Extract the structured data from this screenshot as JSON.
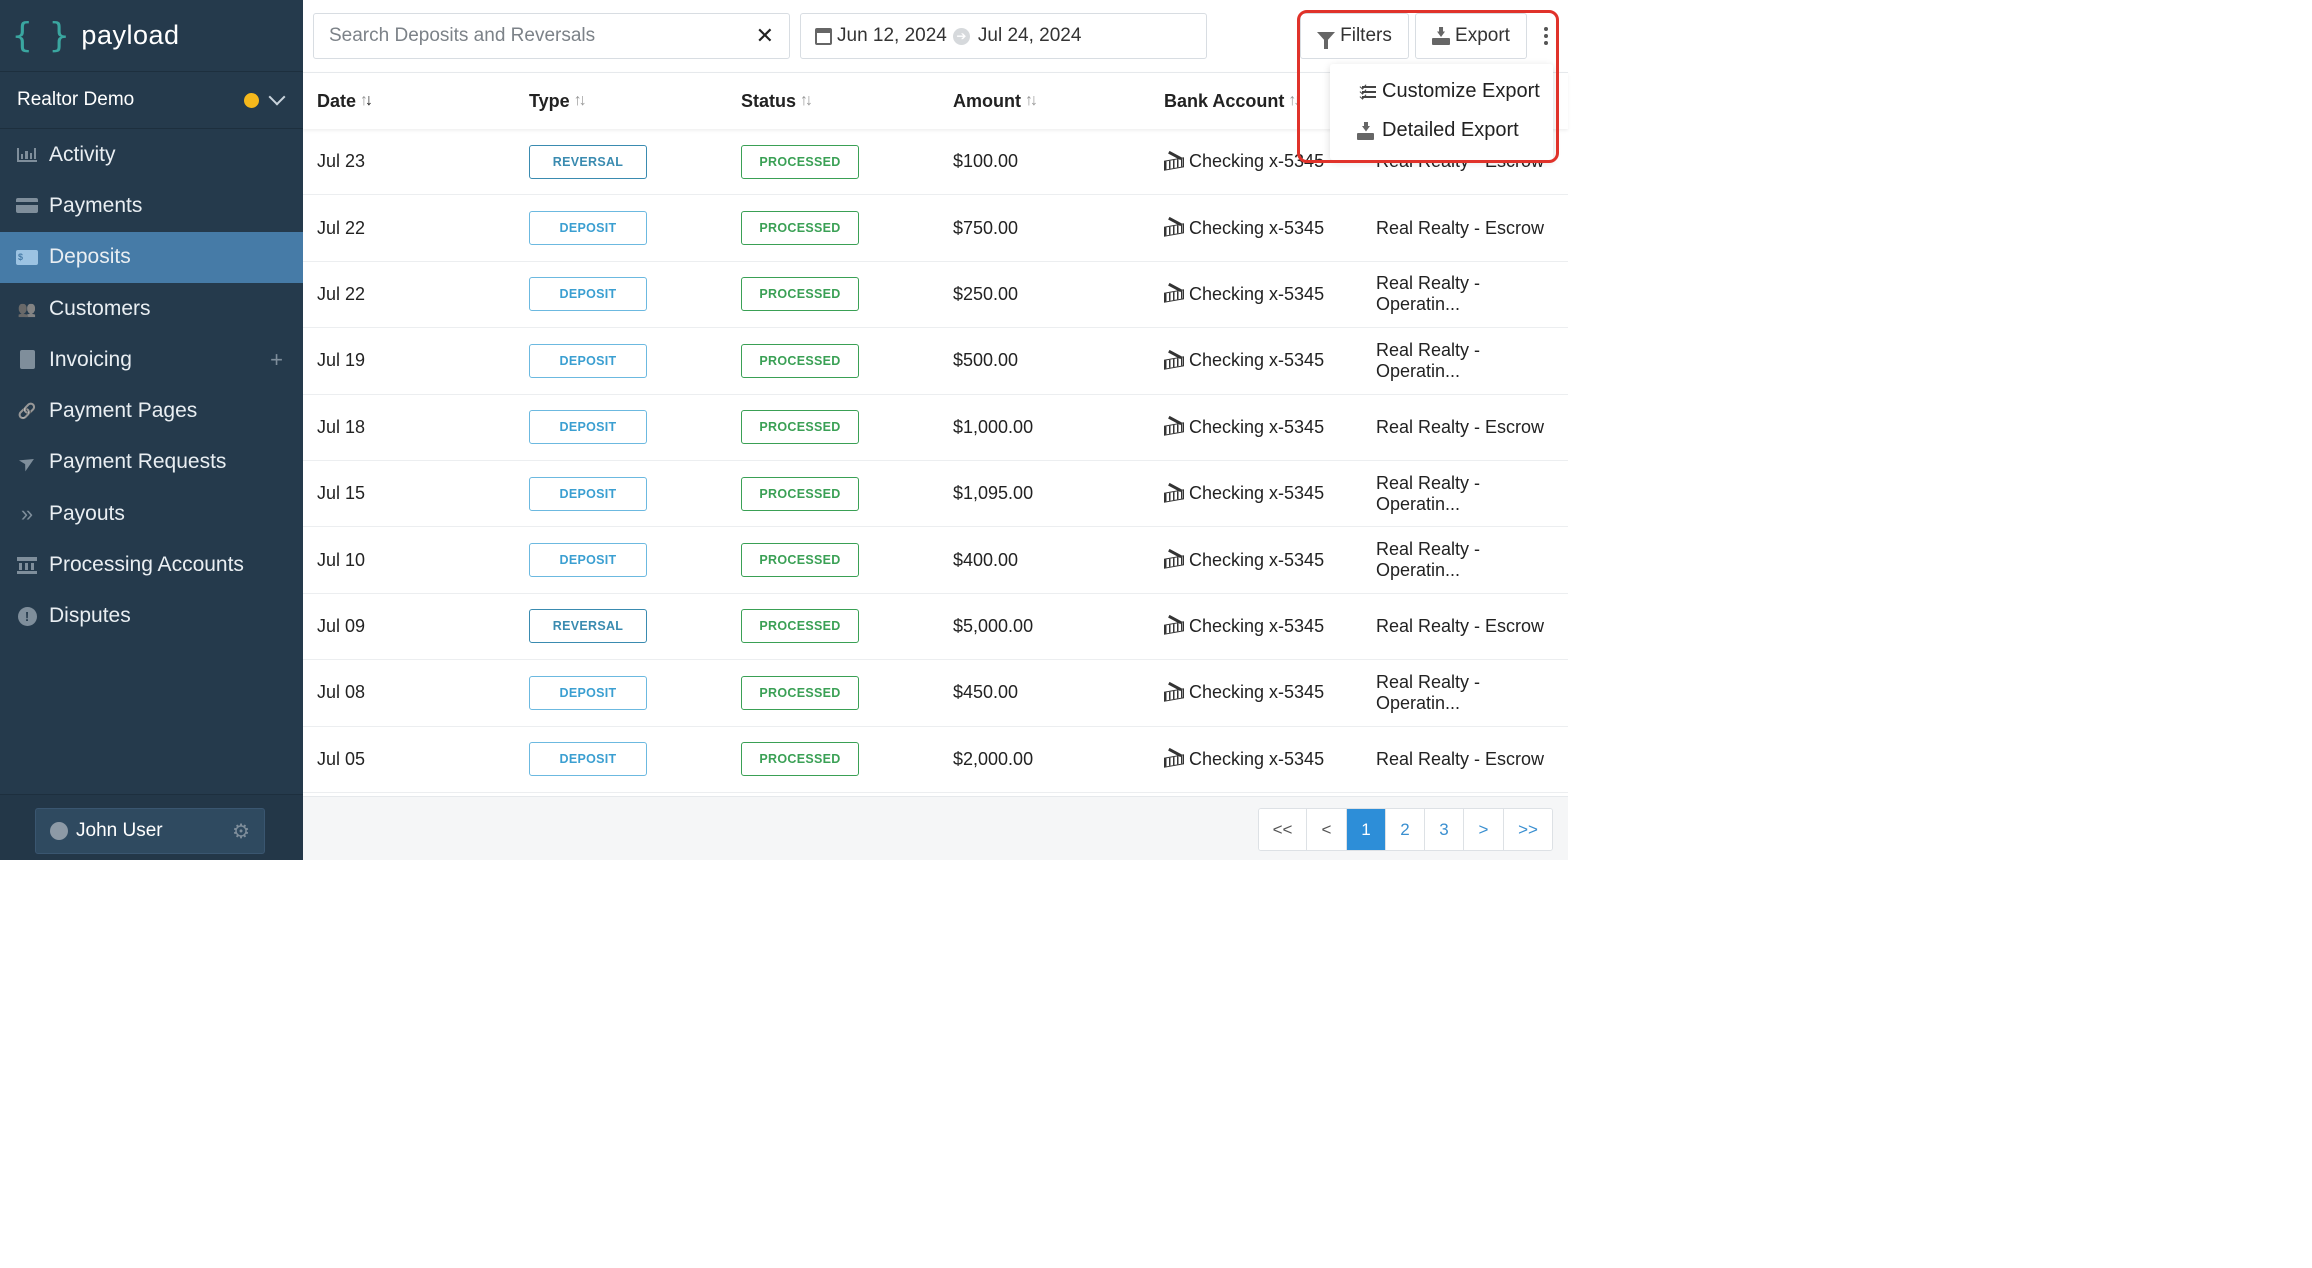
{
  "app": {
    "logo_text": "payload",
    "logo_mark": "{ }"
  },
  "org": {
    "name": "Realtor Demo",
    "status_color": "#f5b81c"
  },
  "sidebar": {
    "items": [
      {
        "label": "Activity",
        "icon": "bar-chart-icon"
      },
      {
        "label": "Payments",
        "icon": "credit-card-icon"
      },
      {
        "label": "Deposits",
        "icon": "money-bill-icon",
        "active": true
      },
      {
        "label": "Customers",
        "icon": "users-icon"
      },
      {
        "label": "Invoicing",
        "icon": "document-icon",
        "extra": "+"
      },
      {
        "label": "Payment Pages",
        "icon": "link-icon"
      },
      {
        "label": "Payment Requests",
        "icon": "paper-plane-icon"
      },
      {
        "label": "Payouts",
        "icon": "double-chevron-icon"
      },
      {
        "label": "Processing Accounts",
        "icon": "bank-icon"
      },
      {
        "label": "Disputes",
        "icon": "exclamation-circle-icon"
      }
    ]
  },
  "user": {
    "name": "John User"
  },
  "toolbar": {
    "search_placeholder": "Search Deposits and Reversals",
    "clear_symbol": "✕",
    "date_start": "Jun 12, 2024",
    "date_end": "Jul 24, 2024",
    "filters_label": "Filters",
    "export_label": "Export"
  },
  "export_menu": {
    "items": [
      {
        "label": "Customize Export",
        "icon": "checklist-icon"
      },
      {
        "label": "Detailed Export",
        "icon": "download-icon"
      }
    ]
  },
  "table": {
    "columns": [
      "Date",
      "Type",
      "Status",
      "Amount",
      "Bank Account"
    ],
    "rows": [
      {
        "date": "Jul 23",
        "type": "REVERSAL",
        "status": "PROCESSED",
        "amount": "$100.00",
        "bank": "Checking x-5345",
        "account": "Real Realty - Escrow"
      },
      {
        "date": "Jul 22",
        "type": "DEPOSIT",
        "status": "PROCESSED",
        "amount": "$750.00",
        "bank": "Checking x-5345",
        "account": "Real Realty - Escrow"
      },
      {
        "date": "Jul 22",
        "type": "DEPOSIT",
        "status": "PROCESSED",
        "amount": "$250.00",
        "bank": "Checking x-5345",
        "account": "Real Realty - Operatin..."
      },
      {
        "date": "Jul 19",
        "type": "DEPOSIT",
        "status": "PROCESSED",
        "amount": "$500.00",
        "bank": "Checking x-5345",
        "account": "Real Realty - Operatin..."
      },
      {
        "date": "Jul 18",
        "type": "DEPOSIT",
        "status": "PROCESSED",
        "amount": "$1,000.00",
        "bank": "Checking x-5345",
        "account": "Real Realty - Escrow"
      },
      {
        "date": "Jul 15",
        "type": "DEPOSIT",
        "status": "PROCESSED",
        "amount": "$1,095.00",
        "bank": "Checking x-5345",
        "account": "Real Realty - Operatin..."
      },
      {
        "date": "Jul 10",
        "type": "DEPOSIT",
        "status": "PROCESSED",
        "amount": "$400.00",
        "bank": "Checking x-5345",
        "account": "Real Realty - Operatin..."
      },
      {
        "date": "Jul 09",
        "type": "REVERSAL",
        "status": "PROCESSED",
        "amount": "$5,000.00",
        "bank": "Checking x-5345",
        "account": "Real Realty - Escrow"
      },
      {
        "date": "Jul 08",
        "type": "DEPOSIT",
        "status": "PROCESSED",
        "amount": "$450.00",
        "bank": "Checking x-5345",
        "account": "Real Realty - Operatin..."
      },
      {
        "date": "Jul 05",
        "type": "DEPOSIT",
        "status": "PROCESSED",
        "amount": "$2,000.00",
        "bank": "Checking x-5345",
        "account": "Real Realty - Escrow"
      }
    ]
  },
  "pagination": {
    "first": "<<",
    "prev": "<",
    "pages": [
      "1",
      "2",
      "3"
    ],
    "current": "1",
    "next": ">",
    "last": ">>"
  },
  "colors": {
    "sidebar": "#253a4c",
    "active": "#467ba7",
    "highlight": "#e0322a",
    "processed": "#3aa055",
    "deposit": "#3b9fd1"
  }
}
